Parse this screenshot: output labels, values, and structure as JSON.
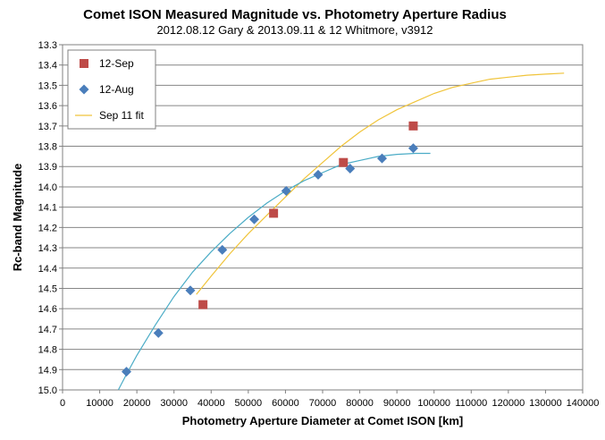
{
  "chart_data": {
    "type": "scatter",
    "title": "Comet ISON Measured Magnitude vs. Photometry Aperture Radius",
    "subtitle": "2012.08.12 Gary & 2013.09.11 & 12 Whitmore, v3912",
    "xlabel": "Photometry Aperture Diameter at Comet ISON [km]",
    "ylabel": "Rc-band Magnitude",
    "xlim": [
      0,
      140000
    ],
    "ylim": [
      13.3,
      15.0
    ],
    "y_inverted": true,
    "grid": true,
    "legend_position": "top-left",
    "x_ticks": [
      0,
      10000,
      20000,
      30000,
      40000,
      50000,
      60000,
      70000,
      80000,
      90000,
      100000,
      110000,
      120000,
      130000,
      140000
    ],
    "y_ticks": [
      13.3,
      13.4,
      13.5,
      13.6,
      13.7,
      13.8,
      13.9,
      14.0,
      14.1,
      14.2,
      14.3,
      14.4,
      14.5,
      14.6,
      14.7,
      14.8,
      14.9,
      15.0
    ],
    "x_tick_labels": [
      "0",
      "10000",
      "20000",
      "30000",
      "40000",
      "50000",
      "60000",
      "70000",
      "80000",
      "90000",
      "100000",
      "110000",
      "120000",
      "130000",
      "140000"
    ],
    "y_tick_labels": [
      "13.3",
      "13.4",
      "13.5",
      "13.6",
      "13.7",
      "13.8",
      "13.9",
      "14.0",
      "14.1",
      "14.2",
      "14.3",
      "14.4",
      "14.5",
      "14.6",
      "14.7",
      "14.8",
      "14.9",
      "15.0"
    ],
    "series": [
      {
        "name": "12-Sep",
        "marker": "square",
        "color": "#be4b48",
        "x": [
          37800,
          56800,
          75600,
          94400
        ],
        "y": [
          14.58,
          14.13,
          13.88,
          13.7
        ]
      },
      {
        "name": "12-Aug",
        "marker": "diamond",
        "color": "#4a7ebb",
        "x": [
          17200,
          25800,
          34400,
          43000,
          51600,
          60200,
          68800,
          77400,
          86000,
          94400
        ],
        "y": [
          14.91,
          14.72,
          14.51,
          14.31,
          14.16,
          14.02,
          13.94,
          13.91,
          13.86,
          13.81
        ]
      },
      {
        "name": "Sep 11 fit",
        "marker": "line",
        "color": "#f0c43a",
        "x": [
          36000,
          40000,
          45000,
          50000,
          55000,
          60000,
          65000,
          70000,
          75000,
          80000,
          85000,
          90000,
          95000,
          100000,
          105000,
          110000,
          115000,
          120000,
          125000,
          130000,
          135000
        ],
        "y": [
          14.53,
          14.44,
          14.33,
          14.23,
          14.14,
          14.05,
          13.96,
          13.88,
          13.8,
          13.73,
          13.67,
          13.62,
          13.58,
          13.54,
          13.51,
          13.49,
          13.47,
          13.46,
          13.45,
          13.445,
          13.44
        ]
      },
      {
        "marker": "line",
        "color": "#4bacc6",
        "x": [
          15000,
          17000,
          20000,
          25000,
          30000,
          35000,
          40000,
          45000,
          50000,
          55000,
          60000,
          65000,
          70000,
          75000,
          80000,
          85000,
          90000,
          95000,
          99000
        ],
        "y": [
          15.0,
          14.93,
          14.83,
          14.68,
          14.54,
          14.42,
          14.32,
          14.23,
          14.15,
          14.08,
          14.02,
          13.97,
          13.93,
          13.89,
          13.87,
          13.85,
          13.84,
          13.835,
          13.835
        ]
      }
    ]
  }
}
